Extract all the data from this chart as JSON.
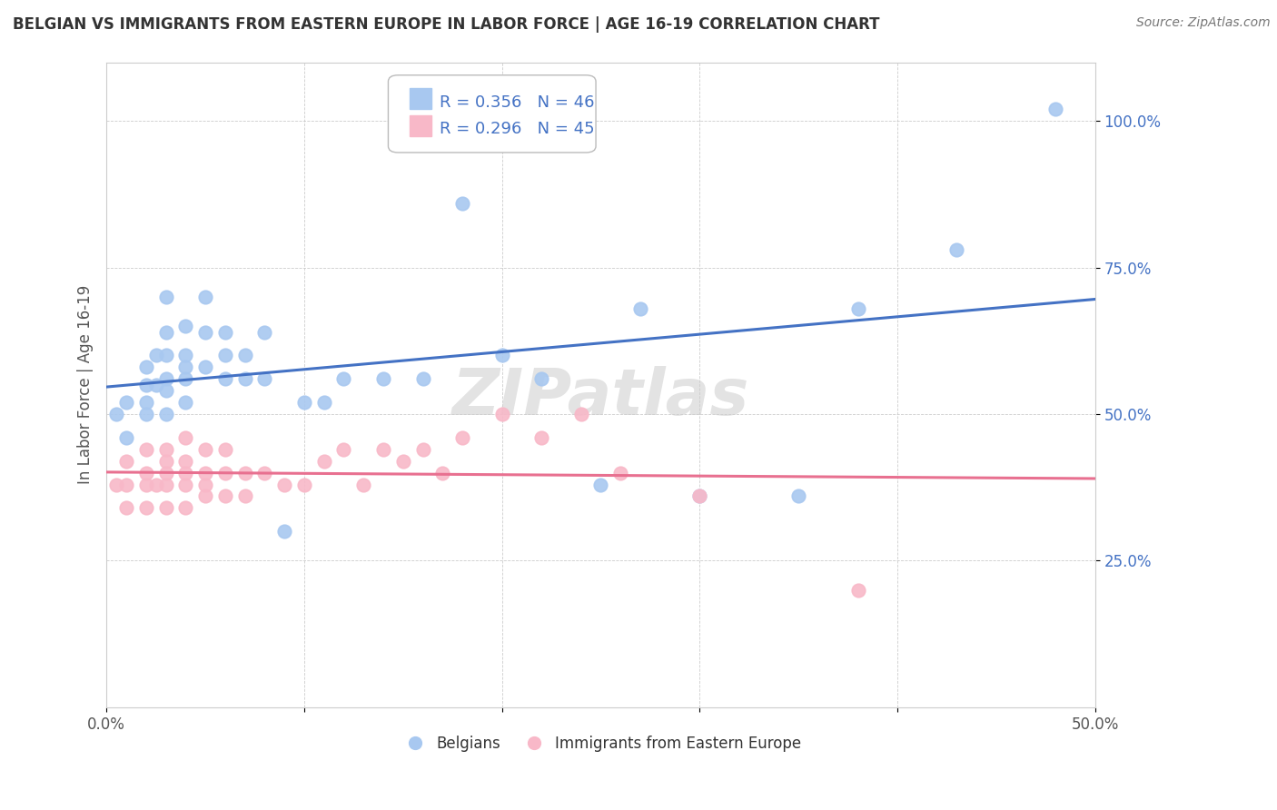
{
  "title": "BELGIAN VS IMMIGRANTS FROM EASTERN EUROPE IN LABOR FORCE | AGE 16-19 CORRELATION CHART",
  "source": "Source: ZipAtlas.com",
  "ylabel": "In Labor Force | Age 16-19",
  "xlim": [
    0.0,
    0.5
  ],
  "ylim": [
    0.0,
    1.1
  ],
  "ytick_values": [
    0.25,
    0.5,
    0.75,
    1.0
  ],
  "ytick_labels": [
    "25.0%",
    "50.0%",
    "75.0%",
    "100.0%"
  ],
  "xtick_values": [
    0.0,
    0.1,
    0.2,
    0.3,
    0.4,
    0.5
  ],
  "xtick_labels": [
    "0.0%",
    "",
    "",
    "",
    "",
    "50.0%"
  ],
  "belgian_R": 0.356,
  "belgian_N": 46,
  "immigrant_R": 0.296,
  "immigrant_N": 45,
  "belgian_color": "#A8C8F0",
  "immigrant_color": "#F8B8C8",
  "belgian_line_color": "#4472C4",
  "immigrant_line_color": "#E87090",
  "legend_label_1": "Belgians",
  "legend_label_2": "Immigrants from Eastern Europe",
  "belgian_x": [
    0.005,
    0.01,
    0.01,
    0.02,
    0.02,
    0.02,
    0.02,
    0.025,
    0.025,
    0.03,
    0.03,
    0.03,
    0.03,
    0.03,
    0.03,
    0.04,
    0.04,
    0.04,
    0.04,
    0.04,
    0.05,
    0.05,
    0.05,
    0.06,
    0.06,
    0.06,
    0.07,
    0.07,
    0.08,
    0.08,
    0.09,
    0.1,
    0.11,
    0.12,
    0.14,
    0.16,
    0.18,
    0.2,
    0.22,
    0.25,
    0.27,
    0.3,
    0.35,
    0.38,
    0.43,
    0.48
  ],
  "belgian_y": [
    0.5,
    0.46,
    0.52,
    0.5,
    0.52,
    0.55,
    0.58,
    0.55,
    0.6,
    0.5,
    0.54,
    0.56,
    0.6,
    0.64,
    0.7,
    0.52,
    0.56,
    0.58,
    0.6,
    0.65,
    0.58,
    0.64,
    0.7,
    0.56,
    0.6,
    0.64,
    0.56,
    0.6,
    0.56,
    0.64,
    0.3,
    0.52,
    0.52,
    0.56,
    0.56,
    0.56,
    0.86,
    0.6,
    0.56,
    0.38,
    0.68,
    0.36,
    0.36,
    0.68,
    0.78,
    1.02
  ],
  "immigrant_x": [
    0.005,
    0.01,
    0.01,
    0.01,
    0.02,
    0.02,
    0.02,
    0.02,
    0.025,
    0.03,
    0.03,
    0.03,
    0.03,
    0.03,
    0.04,
    0.04,
    0.04,
    0.04,
    0.04,
    0.05,
    0.05,
    0.05,
    0.05,
    0.06,
    0.06,
    0.06,
    0.07,
    0.07,
    0.08,
    0.09,
    0.1,
    0.11,
    0.12,
    0.13,
    0.14,
    0.15,
    0.16,
    0.17,
    0.18,
    0.2,
    0.22,
    0.24,
    0.26,
    0.3,
    0.38
  ],
  "immigrant_y": [
    0.38,
    0.34,
    0.38,
    0.42,
    0.34,
    0.38,
    0.4,
    0.44,
    0.38,
    0.34,
    0.38,
    0.4,
    0.42,
    0.44,
    0.34,
    0.38,
    0.4,
    0.42,
    0.46,
    0.36,
    0.38,
    0.4,
    0.44,
    0.36,
    0.4,
    0.44,
    0.36,
    0.4,
    0.4,
    0.38,
    0.38,
    0.42,
    0.44,
    0.38,
    0.44,
    0.42,
    0.44,
    0.4,
    0.46,
    0.5,
    0.46,
    0.5,
    0.4,
    0.36,
    0.2
  ],
  "watermark_text": "ZIPatlas",
  "watermark_fontsize": 52
}
